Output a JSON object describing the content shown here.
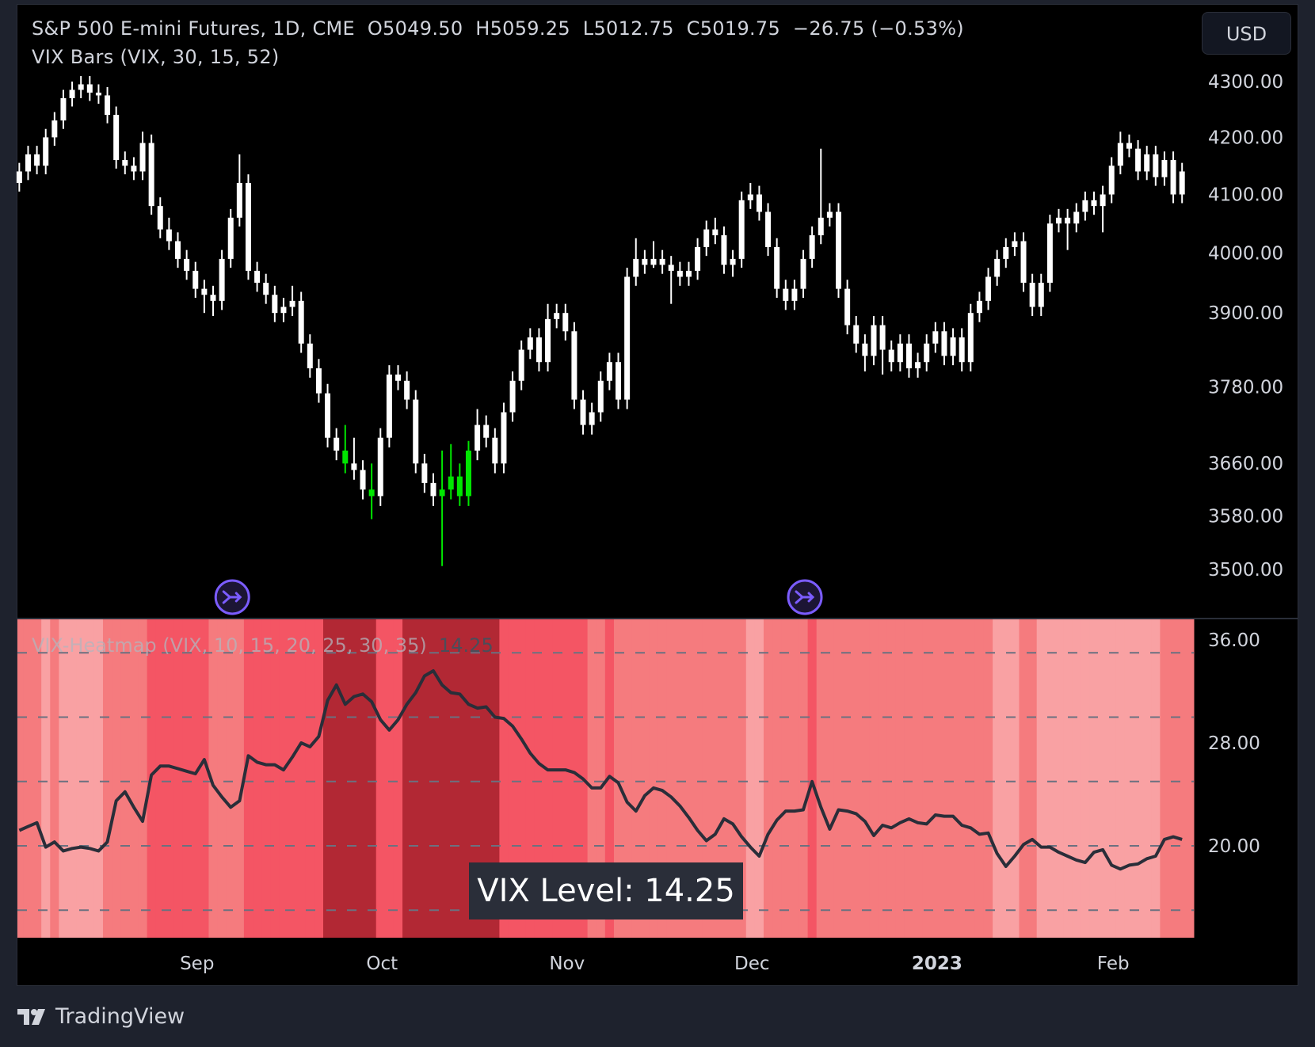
{
  "header": {
    "title": "S&P 500 E-mini Futures, 1D, CME  O5049.50  H5059.25  L5012.75  C5019.75  −26.75 (−0.53%)",
    "indicator": "VIX Bars (VIX, 30, 15, 52)",
    "currency_button": "USD"
  },
  "heatmap": {
    "title": "VIX-Heatmap (VIX, 10, 15, 20, 25, 30, 35)",
    "value": "14.25",
    "level_label": "VIX Level: 14.25"
  },
  "footer": {
    "brand": "TradingView"
  },
  "colors": {
    "background": "#000000",
    "candle": "#ffffff",
    "vix_bar": "#00e600",
    "vix_line": "#2a2e39",
    "marker": "#7b5cff",
    "heat_below_20": "#f9a1a3",
    "heat_20_25": "#f57b7e",
    "heat_25_30": "#f45564",
    "heat_30_35": "#b22834"
  },
  "chart_data": [
    {
      "type": "candlestick",
      "scale": "log",
      "yticks": [
        "4300.00",
        "4200.00",
        "4100.00",
        "4000.00",
        "3900.00",
        "3780.00",
        "3660.00",
        "3580.00",
        "3500.00"
      ],
      "ytick_values": [
        4300,
        4200,
        4100,
        4000,
        3900,
        3780,
        3660,
        3580,
        3500
      ],
      "xticks": [
        {
          "label": "Sep",
          "bar": 20
        },
        {
          "label": "Oct",
          "bar": 41
        },
        {
          "label": "Nov",
          "bar": 62
        },
        {
          "label": "Dec",
          "bar": 83
        },
        {
          "label": "2023",
          "bar": 104,
          "bold": true
        },
        {
          "label": "Feb",
          "bar": 124
        }
      ],
      "vix_bar_highlight": [
        37,
        40,
        48,
        49,
        50,
        51
      ],
      "markers": [
        {
          "bar": 24,
          "icon": "arrow-merge-icon"
        },
        {
          "bar": 89,
          "icon": "arrow-merge-icon"
        }
      ],
      "ohlc": [
        [
          4120,
          4155,
          4105,
          4140
        ],
        [
          4140,
          4185,
          4125,
          4170
        ],
        [
          4170,
          4185,
          4135,
          4150
        ],
        [
          4150,
          4215,
          4135,
          4200
        ],
        [
          4200,
          4245,
          4185,
          4230
        ],
        [
          4230,
          4285,
          4215,
          4270
        ],
        [
          4270,
          4300,
          4255,
          4285
        ],
        [
          4285,
          4310,
          4270,
          4295
        ],
        [
          4295,
          4310,
          4265,
          4280
        ],
        [
          4280,
          4295,
          4260,
          4275
        ],
        [
          4275,
          4290,
          4225,
          4240
        ],
        [
          4240,
          4255,
          4145,
          4160
        ],
        [
          4160,
          4175,
          4135,
          4150
        ],
        [
          4150,
          4165,
          4125,
          4140
        ],
        [
          4140,
          4210,
          4125,
          4190
        ],
        [
          4190,
          4205,
          4065,
          4080
        ],
        [
          4080,
          4095,
          4025,
          4040
        ],
        [
          4040,
          4060,
          4005,
          4020
        ],
        [
          4020,
          4035,
          3975,
          3990
        ],
        [
          3990,
          4005,
          3955,
          3970
        ],
        [
          3970,
          3985,
          3925,
          3940
        ],
        [
          3940,
          3955,
          3900,
          3930
        ],
        [
          3930,
          3945,
          3895,
          3920
        ],
        [
          3920,
          4005,
          3905,
          3990
        ],
        [
          3990,
          4075,
          3975,
          4060
        ],
        [
          4060,
          4170,
          4045,
          4120
        ],
        [
          4120,
          4135,
          3955,
          3970
        ],
        [
          3970,
          3985,
          3935,
          3950
        ],
        [
          3950,
          3965,
          3915,
          3930
        ],
        [
          3930,
          3945,
          3885,
          3900
        ],
        [
          3900,
          3925,
          3885,
          3910
        ],
        [
          3910,
          3945,
          3895,
          3920
        ],
        [
          3920,
          3935,
          3835,
          3850
        ],
        [
          3850,
          3865,
          3795,
          3810
        ],
        [
          3810,
          3825,
          3755,
          3770
        ],
        [
          3770,
          3785,
          3685,
          3700
        ],
        [
          3700,
          3715,
          3665,
          3680
        ],
        [
          3680,
          3720,
          3645,
          3660
        ],
        [
          3660,
          3700,
          3635,
          3650
        ],
        [
          3650,
          3665,
          3605,
          3620
        ],
        [
          3620,
          3660,
          3575,
          3610
        ],
        [
          3610,
          3715,
          3595,
          3700
        ],
        [
          3700,
          3815,
          3685,
          3800
        ],
        [
          3800,
          3815,
          3775,
          3790
        ],
        [
          3790,
          3805,
          3745,
          3760
        ],
        [
          3760,
          3775,
          3645,
          3660
        ],
        [
          3660,
          3675,
          3615,
          3630
        ],
        [
          3630,
          3645,
          3595,
          3610
        ],
        [
          3610,
          3680,
          3505,
          3620
        ],
        [
          3620,
          3690,
          3605,
          3640
        ],
        [
          3640,
          3660,
          3595,
          3610
        ],
        [
          3610,
          3695,
          3595,
          3680
        ],
        [
          3680,
          3745,
          3665,
          3720
        ],
        [
          3720,
          3735,
          3685,
          3700
        ],
        [
          3700,
          3715,
          3645,
          3660
        ],
        [
          3660,
          3755,
          3645,
          3740
        ],
        [
          3740,
          3805,
          3725,
          3790
        ],
        [
          3790,
          3855,
          3775,
          3840
        ],
        [
          3840,
          3875,
          3825,
          3860
        ],
        [
          3860,
          3875,
          3805,
          3820
        ],
        [
          3820,
          3915,
          3805,
          3890
        ],
        [
          3890,
          3915,
          3875,
          3900
        ],
        [
          3900,
          3915,
          3855,
          3870
        ],
        [
          3870,
          3885,
          3745,
          3760
        ],
        [
          3760,
          3775,
          3705,
          3720
        ],
        [
          3720,
          3755,
          3705,
          3740
        ],
        [
          3740,
          3805,
          3725,
          3790
        ],
        [
          3790,
          3835,
          3775,
          3820
        ],
        [
          3820,
          3835,
          3745,
          3760
        ],
        [
          3760,
          3975,
          3745,
          3960
        ],
        [
          3960,
          4025,
          3945,
          3990
        ],
        [
          3990,
          4005,
          3965,
          3980
        ],
        [
          3980,
          4020,
          3975,
          3990
        ],
        [
          3990,
          4005,
          3965,
          3980
        ],
        [
          3980,
          3995,
          3915,
          3970
        ],
        [
          3970,
          3985,
          3945,
          3960
        ],
        [
          3960,
          3985,
          3945,
          3970
        ],
        [
          3970,
          4025,
          3955,
          4010
        ],
        [
          4010,
          4055,
          3995,
          4040
        ],
        [
          4040,
          4060,
          4015,
          4030
        ],
        [
          4030,
          4045,
          3965,
          3980
        ],
        [
          3980,
          4005,
          3960,
          3990
        ],
        [
          3990,
          4105,
          3975,
          4090
        ],
        [
          4090,
          4120,
          4075,
          4100
        ],
        [
          4100,
          4115,
          4055,
          4070
        ],
        [
          4070,
          4085,
          3995,
          4010
        ],
        [
          4010,
          4025,
          3925,
          3940
        ],
        [
          3940,
          3955,
          3905,
          3920
        ],
        [
          3920,
          3955,
          3905,
          3940
        ],
        [
          3940,
          4005,
          3925,
          3990
        ],
        [
          3990,
          4045,
          3975,
          4030
        ],
        [
          4030,
          4180,
          4015,
          4060
        ],
        [
          4060,
          4085,
          4045,
          4070
        ],
        [
          4070,
          4085,
          3925,
          3940
        ],
        [
          3940,
          3955,
          3865,
          3880
        ],
        [
          3880,
          3895,
          3835,
          3850
        ],
        [
          3850,
          3865,
          3805,
          3830
        ],
        [
          3830,
          3895,
          3815,
          3880
        ],
        [
          3880,
          3895,
          3800,
          3840
        ],
        [
          3840,
          3855,
          3805,
          3820
        ],
        [
          3820,
          3865,
          3805,
          3850
        ],
        [
          3850,
          3865,
          3795,
          3810
        ],
        [
          3810,
          3835,
          3795,
          3820
        ],
        [
          3820,
          3865,
          3805,
          3850
        ],
        [
          3850,
          3885,
          3835,
          3870
        ],
        [
          3870,
          3885,
          3815,
          3830
        ],
        [
          3830,
          3875,
          3815,
          3860
        ],
        [
          3860,
          3875,
          3805,
          3820
        ],
        [
          3820,
          3915,
          3805,
          3900
        ],
        [
          3900,
          3935,
          3885,
          3920
        ],
        [
          3920,
          3975,
          3905,
          3960
        ],
        [
          3960,
          4005,
          3945,
          3990
        ],
        [
          3990,
          4025,
          3975,
          4010
        ],
        [
          4010,
          4035,
          3995,
          4020
        ],
        [
          4020,
          4035,
          3935,
          3950
        ],
        [
          3950,
          3965,
          3895,
          3910
        ],
        [
          3910,
          3965,
          3895,
          3950
        ],
        [
          3950,
          4065,
          3935,
          4050
        ],
        [
          4050,
          4075,
          4035,
          4060
        ],
        [
          4060,
          4075,
          4005,
          4050
        ],
        [
          4050,
          4085,
          4035,
          4070
        ],
        [
          4070,
          4105,
          4055,
          4090
        ],
        [
          4090,
          4105,
          4065,
          4080
        ],
        [
          4080,
          4115,
          4035,
          4100
        ],
        [
          4100,
          4165,
          4085,
          4150
        ],
        [
          4150,
          4210,
          4135,
          4190
        ],
        [
          4190,
          4205,
          4165,
          4180
        ],
        [
          4180,
          4195,
          4125,
          4140
        ],
        [
          4140,
          4185,
          4125,
          4170
        ],
        [
          4170,
          4185,
          4115,
          4130
        ],
        [
          4130,
          4175,
          4115,
          4160
        ],
        [
          4160,
          4175,
          4085,
          4100
        ],
        [
          4100,
          4155,
          4085,
          4140
        ]
      ]
    },
    {
      "type": "line+heatmap",
      "yticks": [
        "36.00",
        "28.00",
        "20.00"
      ],
      "ytick_values": [
        36,
        28,
        20
      ],
      "ylim": [
        13.5,
        37.6
      ],
      "dashed_levels": [
        15,
        20,
        25,
        30,
        35
      ],
      "thresholds": [
        10,
        15,
        20,
        25,
        30,
        35
      ],
      "vix": [
        21.2,
        21.5,
        21.8,
        19.9,
        20.3,
        19.6,
        19.8,
        19.9,
        19.8,
        19.6,
        20.3,
        23.5,
        24.2,
        23.0,
        21.9,
        25.5,
        26.2,
        26.2,
        26.0,
        25.8,
        25.6,
        26.7,
        24.7,
        23.8,
        23.0,
        23.5,
        27.0,
        26.5,
        26.3,
        26.3,
        25.9,
        26.9,
        28.0,
        27.7,
        28.5,
        31.3,
        32.5,
        31.0,
        31.6,
        31.8,
        31.2,
        29.8,
        29.0,
        29.8,
        31.0,
        31.9,
        33.2,
        33.6,
        32.5,
        31.9,
        31.8,
        31.0,
        30.7,
        30.8,
        30.0,
        29.9,
        29.3,
        28.3,
        27.2,
        26.4,
        25.9,
        25.9,
        25.9,
        25.7,
        25.2,
        24.5,
        24.5,
        25.4,
        24.9,
        23.4,
        22.7,
        23.9,
        24.5,
        24.3,
        23.8,
        23.1,
        22.2,
        21.2,
        20.4,
        20.9,
        22.1,
        21.7,
        20.7,
        19.9,
        19.2,
        20.9,
        22.0,
        22.7,
        22.7,
        22.8,
        25.0,
        23.0,
        21.3,
        22.8,
        22.7,
        22.5,
        21.9,
        20.8,
        21.6,
        21.4,
        21.8,
        22.1,
        21.8,
        21.7,
        22.4,
        22.3,
        22.3,
        21.6,
        21.4,
        20.9,
        21.0,
        19.4,
        18.4,
        19.2,
        20.1,
        20.5,
        19.9,
        19.9,
        19.5,
        19.2,
        18.9,
        18.7,
        19.5,
        19.7,
        18.5,
        18.2,
        18.5,
        18.6,
        19.0,
        19.2,
        20.5,
        20.7,
        20.5
      ]
    }
  ]
}
